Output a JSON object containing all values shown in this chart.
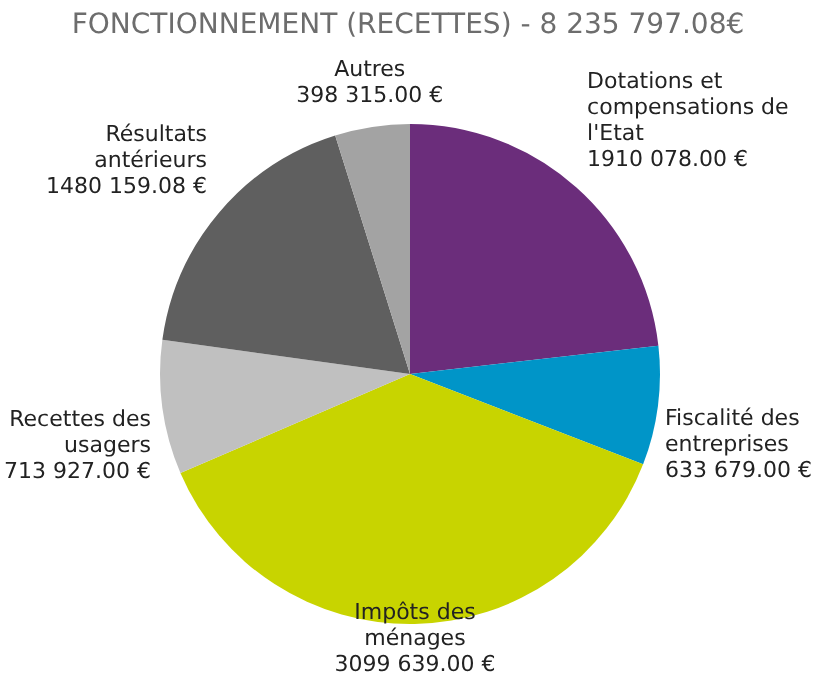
{
  "chart_data": {
    "type": "pie",
    "title": "FONCTIONNEMENT (RECETTES) - 8 235 797.08€",
    "categories": [
      "Dotations et compensations de l'Etat",
      "Fiscalité des entreprises",
      "Impôts des ménages",
      "Recettes des usagers",
      "Résultats antérieurs",
      "Autres"
    ],
    "values": [
      1910078.0,
      633679.0,
      3099639.0,
      713927.0,
      1480159.08,
      398315.0
    ],
    "value_labels": [
      "1910 078.00 €",
      "633 679.00 €",
      "3099 639.00 €",
      "713 927.00 €",
      "1480 159.08 €",
      "398 315.00 €"
    ],
    "colors": [
      "#6b2d7b",
      "#0095c8",
      "#c8d400",
      "#c0c0c0",
      "#5f5f5f",
      "#a3a3a3"
    ],
    "legend": false
  }
}
